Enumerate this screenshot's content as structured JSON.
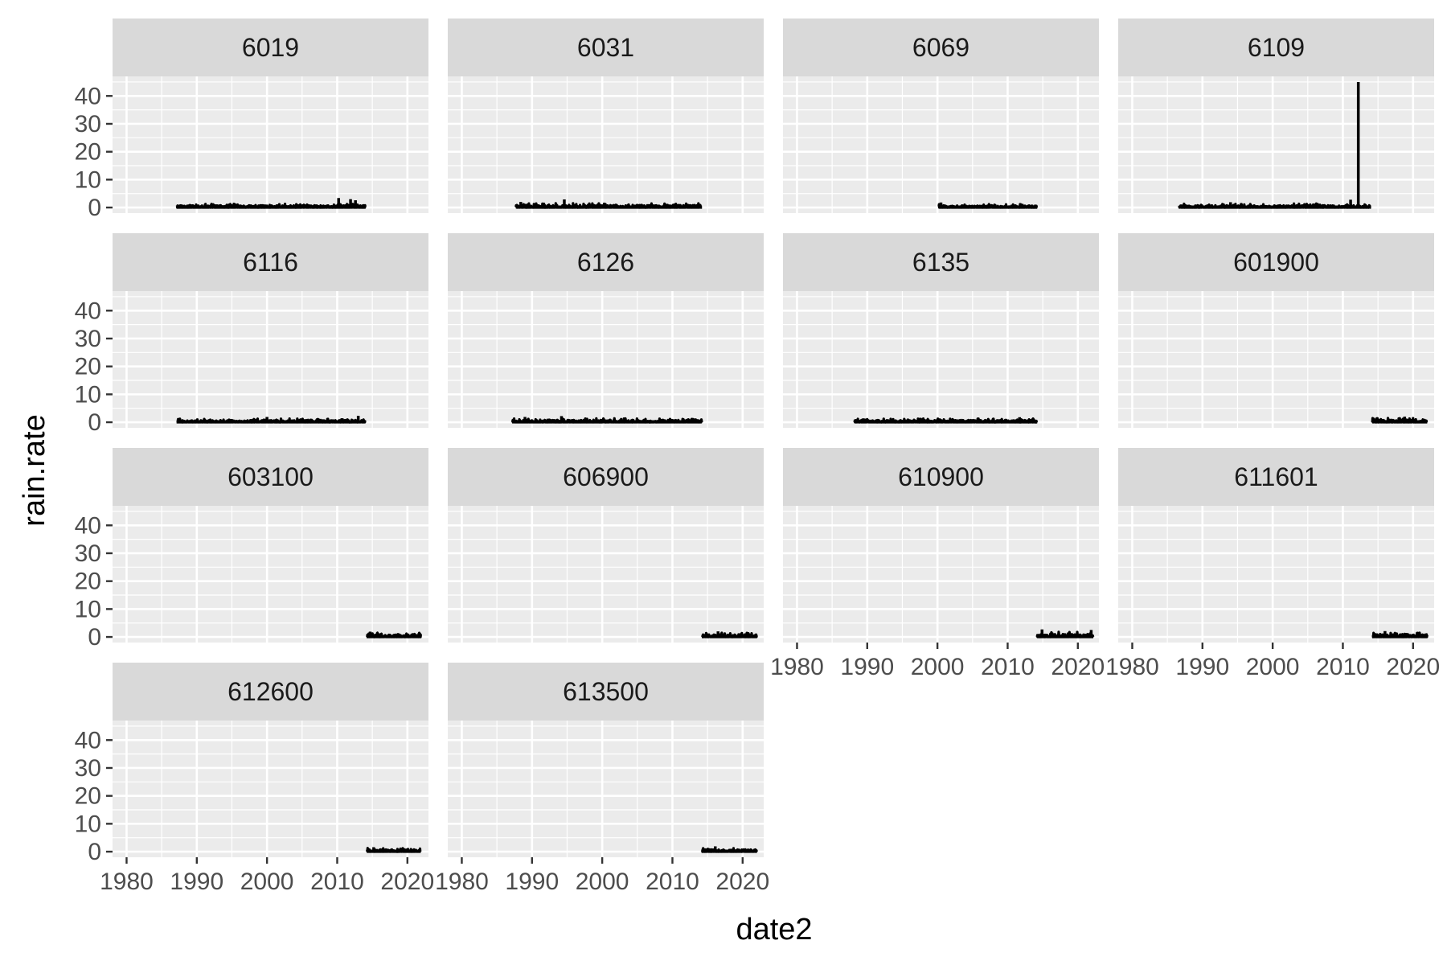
{
  "chart_data": {
    "type": "line",
    "layout": "facet_wrap",
    "ncol": 4,
    "xlabel": "date2",
    "ylabel": "rain.rate",
    "xlim": [
      1978,
      2023
    ],
    "ylim": [
      -2,
      47
    ],
    "x_ticks": [
      1980,
      1990,
      2000,
      2010,
      2020
    ],
    "y_ticks": [
      0,
      10,
      20,
      30,
      40
    ],
    "grid": true,
    "line_color": "#000000",
    "panel_background": "#ebebeb",
    "strip_background": "#d9d9d9",
    "panels": [
      {
        "label": "6019",
        "start": 1987.2,
        "end": 2014.0,
        "base_max": 1.3,
        "peaks": [
          [
            2010.2,
            3.4
          ],
          [
            2011.9,
            3.0
          ],
          [
            2012.6,
            2.6
          ]
        ]
      },
      {
        "label": "6031",
        "start": 1987.7,
        "end": 2014.2,
        "base_max": 1.5,
        "peaks": [
          [
            1988.4,
            2.0
          ],
          [
            1994.6,
            2.9
          ]
        ]
      },
      {
        "label": "6069",
        "start": 2000.2,
        "end": 2014.2,
        "base_max": 1.2,
        "peaks": [
          [
            2000.5,
            1.8
          ]
        ]
      },
      {
        "label": "6109",
        "start": 1986.7,
        "end": 2014.0,
        "base_max": 1.4,
        "peaks": [
          [
            2012.2,
            45.0
          ],
          [
            2011.1,
            2.8
          ],
          [
            1994.0,
            1.9
          ]
        ]
      },
      {
        "label": "6116",
        "start": 1987.2,
        "end": 2014.0,
        "base_max": 1.3,
        "peaks": [
          [
            2013.0,
            2.3
          ],
          [
            2000.0,
            1.9
          ]
        ]
      },
      {
        "label": "6126",
        "start": 1987.2,
        "end": 2014.2,
        "base_max": 1.4,
        "peaks": [
          [
            1989.0,
            1.9
          ],
          [
            1994.2,
            2.2
          ]
        ]
      },
      {
        "label": "6135",
        "start": 1988.2,
        "end": 2014.2,
        "base_max": 1.3,
        "peaks": [
          [
            2011.7,
            1.8
          ]
        ]
      },
      {
        "label": "601900",
        "start": 2014.2,
        "end": 2022.0,
        "base_max": 1.5,
        "peaks": [
          [
            2018.8,
            2.0
          ]
        ]
      },
      {
        "label": "603100",
        "start": 2014.2,
        "end": 2021.9,
        "base_max": 1.5,
        "peaks": [
          [
            2014.7,
            1.9
          ]
        ]
      },
      {
        "label": "606900",
        "start": 2014.2,
        "end": 2022.0,
        "base_max": 1.5,
        "peaks": [
          [
            2016.5,
            2.0
          ]
        ]
      },
      {
        "label": "610900",
        "start": 2014.2,
        "end": 2022.2,
        "base_max": 1.8,
        "peaks": [
          [
            2014.9,
            2.7
          ],
          [
            2021.9,
            2.5
          ]
        ]
      },
      {
        "label": "611601",
        "start": 2014.2,
        "end": 2022.0,
        "base_max": 1.6,
        "peaks": [
          [
            2016.0,
            2.1
          ]
        ]
      },
      {
        "label": "612600",
        "start": 2014.2,
        "end": 2021.9,
        "base_max": 1.3,
        "peaks": [
          [
            2015.2,
            1.6
          ]
        ]
      },
      {
        "label": "613500",
        "start": 2014.2,
        "end": 2022.0,
        "base_max": 1.3,
        "peaks": [
          [
            2016.1,
            1.9
          ]
        ]
      }
    ]
  }
}
